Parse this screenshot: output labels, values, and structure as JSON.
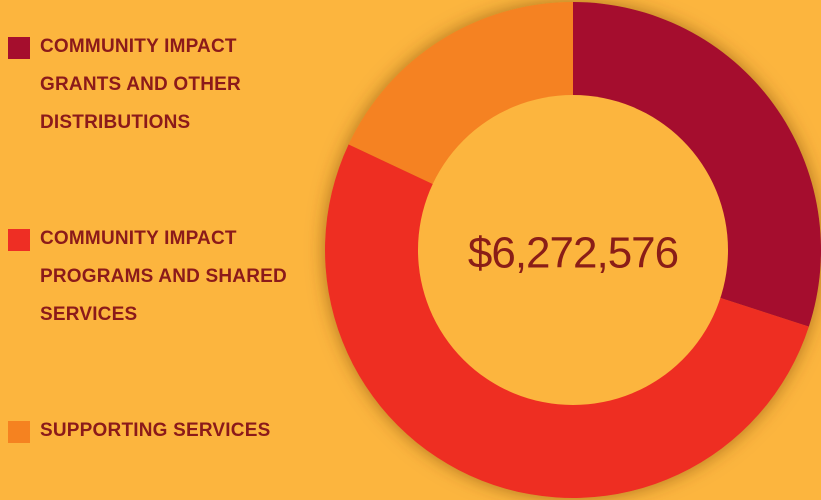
{
  "chart_data": {
    "type": "donut",
    "center_label": "$6,272,576",
    "categories": [
      "COMMUNITY IMPACT GRANTS AND OTHER DISTRIBUTIONS",
      "COMMUNITY IMPACT PROGRAMS AND SHARED SERVICES",
      "SUPPORTING SERVICES"
    ],
    "values": [
      30,
      52,
      18
    ],
    "colors": [
      "#a50e2d",
      "#ee2e24",
      "#f58220"
    ]
  }
}
